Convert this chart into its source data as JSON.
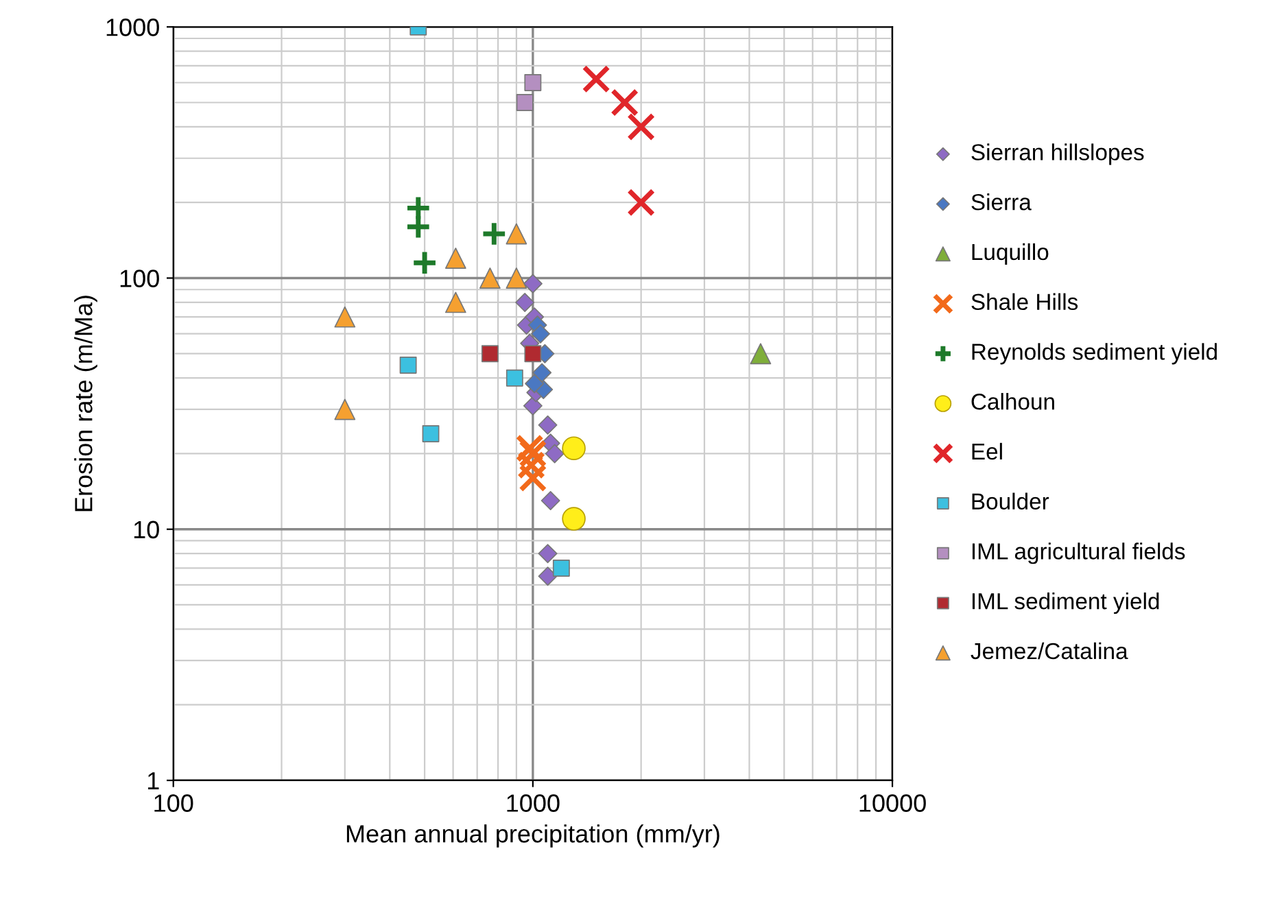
{
  "chart_data": {
    "type": "scatter",
    "xlabel": "Mean annual precipitation (mm/yr)",
    "ylabel": "Erosion rate (m/Ma)",
    "log": "xy",
    "xlim": [
      100,
      10000
    ],
    "ylim": [
      1,
      1000
    ],
    "xticks": [
      100,
      1000,
      10000
    ],
    "yticks": [
      1,
      10,
      100,
      1000
    ],
    "grid": true,
    "legend": "right",
    "series": [
      {
        "name": "Sierran hillslopes",
        "color": "#8e6bc4",
        "marker": "diamond",
        "x": [
          1000,
          950,
          960,
          1010,
          980,
          1000,
          1020,
          1100,
          1120,
          1150,
          1120,
          1100,
          1100
        ],
        "values": [
          95,
          80,
          65,
          70,
          55,
          31,
          35,
          26,
          22,
          20,
          13,
          8,
          6.5
        ]
      },
      {
        "name": "Sierra",
        "color": "#4a78c2",
        "marker": "diamond",
        "x": [
          1030,
          1050,
          1080,
          1070,
          1010,
          1060
        ],
        "values": [
          65,
          60,
          50,
          36,
          38,
          42
        ]
      },
      {
        "name": "Luquillo",
        "color": "#7fae3a",
        "marker": "triangle",
        "x": [
          4300
        ],
        "values": [
          50
        ]
      },
      {
        "name": "Shale Hills",
        "color": "#f26a1b",
        "marker": "cross",
        "x": [
          1000,
          990,
          1000,
          980
        ],
        "values": [
          20,
          18,
          16,
          21
        ]
      },
      {
        "name": "Reynolds sediment yield",
        "color": "#1e7a2a",
        "marker": "plus",
        "x": [
          480,
          480,
          500,
          780
        ],
        "values": [
          190,
          160,
          115,
          150
        ]
      },
      {
        "name": "Calhoun",
        "color": "#ffee1a",
        "marker": "circle",
        "x": [
          1300,
          1300
        ],
        "values": [
          21,
          11
        ]
      },
      {
        "name": "Eel",
        "color": "#e0262a",
        "marker": "cross",
        "x": [
          1500,
          1800,
          2000,
          2000
        ],
        "values": [
          620,
          500,
          400,
          200
        ]
      },
      {
        "name": "Boulder",
        "color": "#3cc0e0",
        "marker": "square",
        "x": [
          480,
          450,
          520,
          890,
          1200
        ],
        "values": [
          1000,
          45,
          24,
          40,
          7
        ]
      },
      {
        "name": "IML agricultural fields",
        "color": "#b48fc0",
        "marker": "square",
        "x": [
          950,
          1000
        ],
        "values": [
          500,
          600
        ]
      },
      {
        "name": "IML sediment yield",
        "color": "#b02a30",
        "marker": "square",
        "x": [
          760,
          1000
        ],
        "values": [
          50,
          50
        ]
      },
      {
        "name": "Jemez/Catalina",
        "color": "#f5a030",
        "marker": "triangle",
        "x": [
          300,
          300,
          610,
          610,
          760,
          900,
          900
        ],
        "values": [
          70,
          30,
          120,
          80,
          100,
          100,
          150
        ]
      }
    ]
  }
}
